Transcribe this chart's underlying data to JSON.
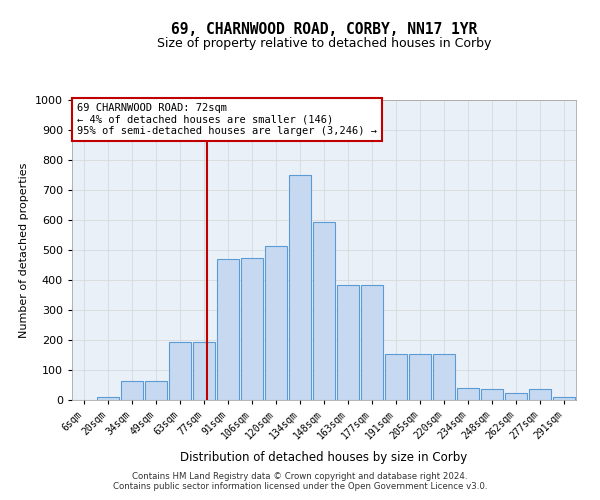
{
  "title1": "69, CHARNWOOD ROAD, CORBY, NN17 1YR",
  "title2": "Size of property relative to detached houses in Corby",
  "xlabel": "Distribution of detached houses by size in Corby",
  "ylabel": "Number of detached properties",
  "footnote1": "Contains HM Land Registry data © Crown copyright and database right 2024.",
  "footnote2": "Contains public sector information licensed under the Open Government Licence v3.0.",
  "categories": [
    "6sqm",
    "20sqm",
    "34sqm",
    "49sqm",
    "63sqm",
    "77sqm",
    "91sqm",
    "106sqm",
    "120sqm",
    "134sqm",
    "148sqm",
    "163sqm",
    "177sqm",
    "191sqm",
    "205sqm",
    "220sqm",
    "234sqm",
    "248sqm",
    "262sqm",
    "277sqm",
    "291sqm"
  ],
  "bar_heights": [
    0,
    10,
    65,
    65,
    195,
    195,
    470,
    475,
    515,
    750,
    595,
    385,
    385,
    155,
    155,
    155,
    40,
    38,
    22,
    38,
    10
  ],
  "bar_color": "#c6d9f0",
  "bar_edge_color": "#5b9bd5",
  "annotation_text": "69 CHARNWOOD ROAD: 72sqm\n← 4% of detached houses are smaller (146)\n95% of semi-detached houses are larger (3,246) →",
  "vline_index": 5,
  "vline_color": "#c00000",
  "annotation_box_color": "#ffffff",
  "annotation_box_edge": "#c00000",
  "ylim": [
    0,
    1000
  ],
  "yticks": [
    0,
    100,
    200,
    300,
    400,
    500,
    600,
    700,
    800,
    900,
    1000
  ],
  "grid_color": "#d9d9d9",
  "background_color": "#eaf0f8",
  "title1_fontsize": 10.5,
  "title2_fontsize": 9
}
